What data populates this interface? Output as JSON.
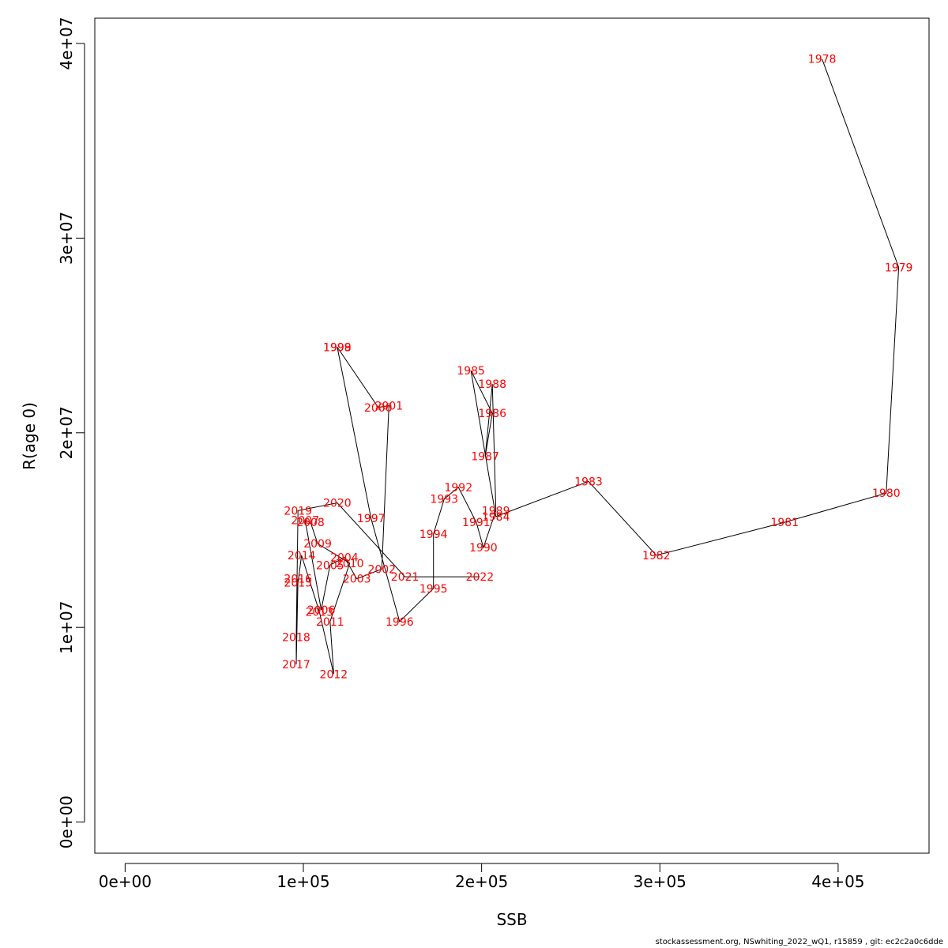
{
  "chart_data": {
    "type": "line",
    "xlabel": "SSB",
    "ylabel": "R(age 0)",
    "xlim": [
      -17000,
      451000
    ],
    "ylim": [
      -1600000,
      41300000
    ],
    "x_ticks": [
      0,
      100000,
      200000,
      300000,
      400000
    ],
    "x_tick_labels": [
      "0e+00",
      "1e+05",
      "2e+05",
      "3e+05",
      "4e+05"
    ],
    "y_ticks": [
      0,
      10000000,
      20000000,
      30000000,
      40000000
    ],
    "y_tick_labels": [
      "0e+00",
      "1e+07",
      "2e+07",
      "3e+07",
      "4e+07"
    ],
    "grid": false,
    "line_color": "#000000",
    "label_color": "#ff0000",
    "series": [
      {
        "points": [
          {
            "year": "1978",
            "x": 391000,
            "y": 39200000
          },
          {
            "year": "1979",
            "x": 434000,
            "y": 28500000
          },
          {
            "year": "1980",
            "x": 427000,
            "y": 16900000
          },
          {
            "year": "1981",
            "x": 370000,
            "y": 15400000
          },
          {
            "year": "1982",
            "x": 298000,
            "y": 13700000
          },
          {
            "year": "1983",
            "x": 260000,
            "y": 17500000
          },
          {
            "year": "1984",
            "x": 208000,
            "y": 15700000
          },
          {
            "year": "1985",
            "x": 194000,
            "y": 23200000
          },
          {
            "year": "1986",
            "x": 206000,
            "y": 21000000
          },
          {
            "year": "1987",
            "x": 202000,
            "y": 18800000
          },
          {
            "year": "1988",
            "x": 206000,
            "y": 22500000
          },
          {
            "year": "1989",
            "x": 208000,
            "y": 16000000
          },
          {
            "year": "1990",
            "x": 201000,
            "y": 14100000
          },
          {
            "year": "1991",
            "x": 197000,
            "y": 15400000
          },
          {
            "year": "1992",
            "x": 187000,
            "y": 17200000
          },
          {
            "year": "1993",
            "x": 179000,
            "y": 16600000
          },
          {
            "year": "1994",
            "x": 173000,
            "y": 14800000
          },
          {
            "year": "1995",
            "x": 173000,
            "y": 12000000
          },
          {
            "year": "1996",
            "x": 154000,
            "y": 10300000
          },
          {
            "year": "1997",
            "x": 138000,
            "y": 15600000
          },
          {
            "year": "1998",
            "x": 119000,
            "y": 24400000
          },
          {
            "year": "1999",
            "x": 119000,
            "y": 24400000
          },
          {
            "year": "2000",
            "x": 142000,
            "y": 21300000
          },
          {
            "year": "2001",
            "x": 148000,
            "y": 21400000
          },
          {
            "year": "2002",
            "x": 144000,
            "y": 13000000
          },
          {
            "year": "2003",
            "x": 130000,
            "y": 12500000
          },
          {
            "year": "2004",
            "x": 123000,
            "y": 13600000
          },
          {
            "year": "2005",
            "x": 115000,
            "y": 13200000
          },
          {
            "year": "2006",
            "x": 110000,
            "y": 10900000
          },
          {
            "year": "2007",
            "x": 101000,
            "y": 15500000
          },
          {
            "year": "2008",
            "x": 104000,
            "y": 15400000
          },
          {
            "year": "2009",
            "x": 108000,
            "y": 14300000
          },
          {
            "year": "2010",
            "x": 126000,
            "y": 13300000
          },
          {
            "year": "2011",
            "x": 115000,
            "y": 10300000
          },
          {
            "year": "2012",
            "x": 117000,
            "y": 7600000
          },
          {
            "year": "2013",
            "x": 109000,
            "y": 10800000
          },
          {
            "year": "2014",
            "x": 99000,
            "y": 13700000
          },
          {
            "year": "2015",
            "x": 97000,
            "y": 12300000
          },
          {
            "year": "2016",
            "x": 97000,
            "y": 12500000
          },
          {
            "year": "2017",
            "x": 96000,
            "y": 8100000
          },
          {
            "year": "2018",
            "x": 96000,
            "y": 9500000
          },
          {
            "year": "2019",
            "x": 97000,
            "y": 16000000
          },
          {
            "year": "2020",
            "x": 119000,
            "y": 16400000
          },
          {
            "year": "2021",
            "x": 157000,
            "y": 12600000
          },
          {
            "year": "2022",
            "x": 199000,
            "y": 12600000
          }
        ]
      }
    ]
  },
  "footer": "stockassessment.org, NSwhiting_2022_wQ1, r15859 , git: ec2c2a0c6dde"
}
